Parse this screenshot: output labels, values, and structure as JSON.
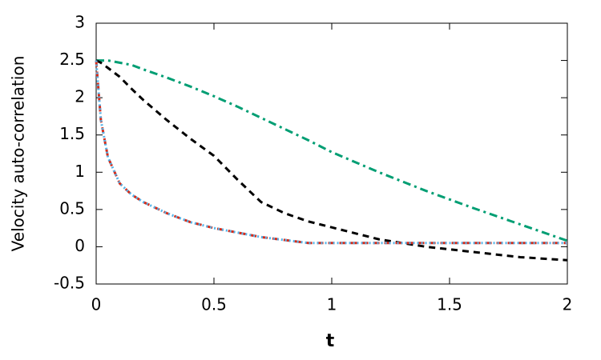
{
  "chart_data": {
    "type": "line",
    "xlabel": "t",
    "ylabel": "Velocity auto-correlation",
    "x": [
      0,
      0.02,
      0.05,
      0.1,
      0.15,
      0.2,
      0.3,
      0.4,
      0.5,
      0.6,
      0.7,
      0.8,
      0.9,
      1,
      1.2,
      1.4,
      1.6,
      1.8,
      2
    ],
    "series": [
      {
        "color": "#009e73",
        "dash": "dashdot",
        "values": [
          2.5,
          2.5,
          2.5,
          2.47,
          2.44,
          2.38,
          2.27,
          2.15,
          2.02,
          1.88,
          1.73,
          1.58,
          1.43,
          1.27,
          1.0,
          0.75,
          0.52,
          0.3,
          0.08
        ]
      },
      {
        "color": "#000000",
        "dash": "dashed",
        "values": [
          2.5,
          2.47,
          2.4,
          2.28,
          2.12,
          1.97,
          1.7,
          1.45,
          1.22,
          0.9,
          0.6,
          0.45,
          0.34,
          0.26,
          0.1,
          0.0,
          -0.07,
          -0.14,
          -0.18
        ]
      },
      {
        "color": "#d62c1a",
        "dash": "dashed",
        "values": [
          2.5,
          1.7,
          1.2,
          0.85,
          0.7,
          0.6,
          0.45,
          0.33,
          0.25,
          0.19,
          0.13,
          0.09,
          0.05,
          0.05,
          0.05,
          0.05,
          0.05,
          0.05,
          0.05
        ]
      },
      {
        "color": "#56b4e9",
        "dash": "dotted",
        "values": [
          2.5,
          1.7,
          1.2,
          0.85,
          0.7,
          0.6,
          0.45,
          0.33,
          0.25,
          0.19,
          0.13,
          0.09,
          0.05,
          0.05,
          0.05,
          0.05,
          0.05,
          0.05,
          0.05
        ]
      }
    ],
    "xlim": [
      0,
      2
    ],
    "xticks": [
      0,
      0.5,
      1,
      1.5,
      2
    ],
    "ylim": [
      -0.5,
      3
    ],
    "yticks": [
      -0.5,
      0,
      0.5,
      1,
      1.5,
      2,
      2.5,
      3
    ]
  }
}
